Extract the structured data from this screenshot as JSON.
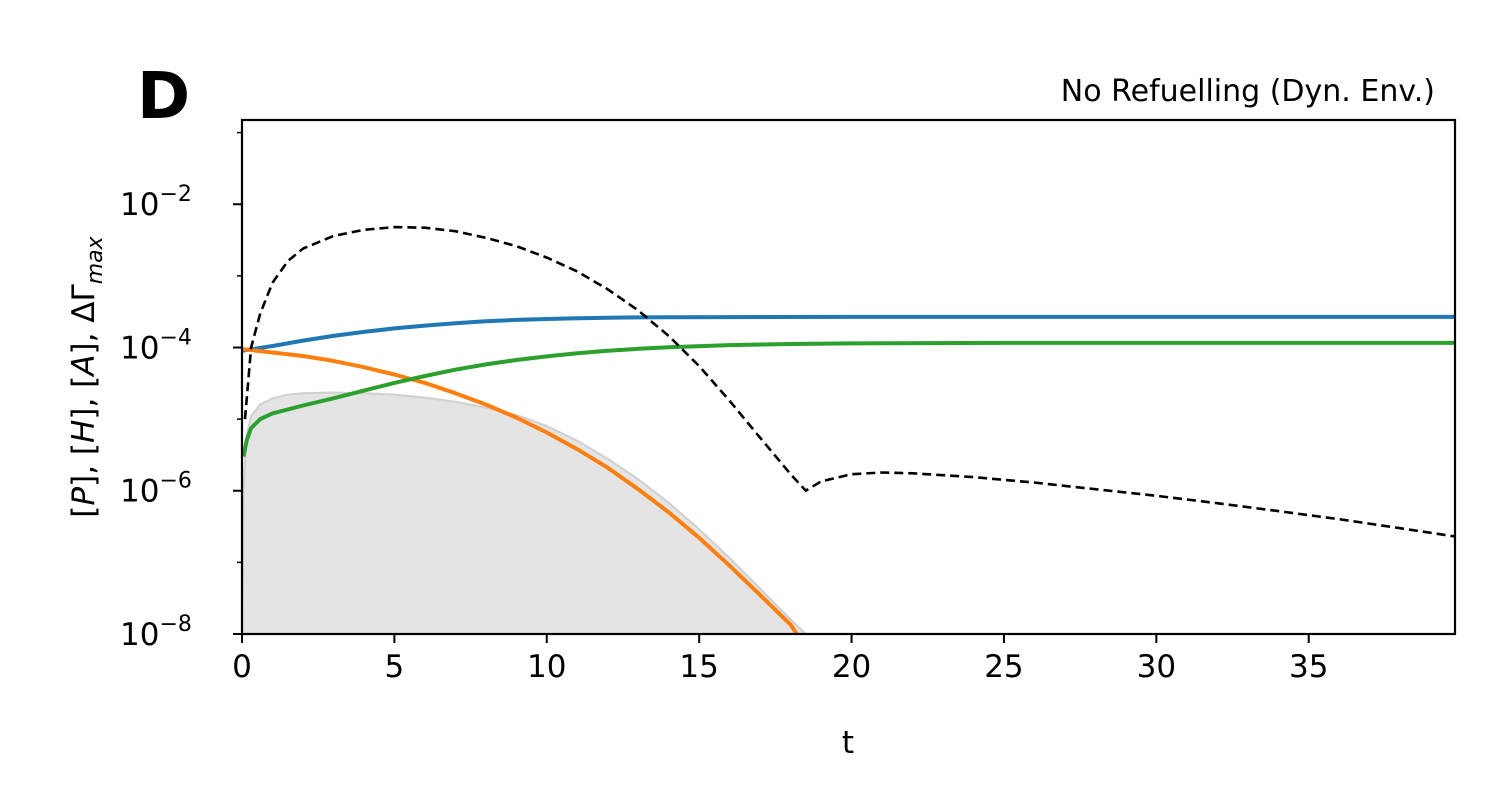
{
  "panel_label": "D",
  "chart_data": {
    "type": "line",
    "title": "No Refuelling (Dyn. Env.)",
    "xlabel": "t",
    "ylabel": {
      "parts": [
        "[",
        "P",
        "], [",
        "H",
        "], [",
        "A",
        "], ΔΓ",
        "max"
      ]
    },
    "xlim": [
      0,
      39.8
    ],
    "ylim": [
      1e-08,
      0.15
    ],
    "yscale": "log",
    "x_ticks": [
      0,
      5,
      10,
      15,
      20,
      25,
      30,
      35
    ],
    "y_ticks": [
      {
        "value": 1e-08,
        "base": "10",
        "exp": "−8"
      },
      {
        "value": 1e-06,
        "base": "10",
        "exp": "−6"
      },
      {
        "value": 0.0001,
        "base": "10",
        "exp": "−4"
      },
      {
        "value": 0.01,
        "base": "10",
        "exp": "−2"
      }
    ],
    "grid": false,
    "series": [
      {
        "style": "solid",
        "color": "#1f77b4",
        "points": [
          [
            0,
            9e-05
          ],
          [
            1,
            0.000105
          ],
          [
            2,
            0.000125
          ],
          [
            3,
            0.000145
          ],
          [
            4,
            0.000165
          ],
          [
            5,
            0.000185
          ],
          [
            6,
            0.000202
          ],
          [
            7,
            0.000218
          ],
          [
            8,
            0.000232
          ],
          [
            9,
            0.000243
          ],
          [
            10,
            0.00025
          ],
          [
            11,
            0.000256
          ],
          [
            12,
            0.00026
          ],
          [
            13,
            0.000263
          ],
          [
            14,
            0.000265
          ],
          [
            16,
            0.000266
          ],
          [
            20,
            0.000267
          ],
          [
            30,
            0.000267
          ],
          [
            39.8,
            0.000267
          ]
        ]
      },
      {
        "style": "solid",
        "color": "#ff7f0e",
        "points": [
          [
            0,
            9.5e-05
          ],
          [
            1,
            8.5e-05
          ],
          [
            2,
            7.6e-05
          ],
          [
            3,
            6.5e-05
          ],
          [
            4,
            5.3e-05
          ],
          [
            5,
            4.2e-05
          ],
          [
            6,
            3.2e-05
          ],
          [
            7,
            2.3e-05
          ],
          [
            8,
            1.6e-05
          ],
          [
            9,
            1.05e-05
          ],
          [
            10,
            6.5e-06
          ],
          [
            11,
            3.8e-06
          ],
          [
            12,
            2.1e-06
          ],
          [
            13,
            1.05e-06
          ],
          [
            14,
            5e-07
          ],
          [
            15,
            2.2e-07
          ],
          [
            16,
            9e-08
          ],
          [
            17,
            3.5e-08
          ],
          [
            18,
            1.35e-08
          ],
          [
            18.2,
            1e-08
          ]
        ]
      },
      {
        "style": "solid",
        "color": "#2ca02c",
        "points": [
          [
            0.05,
            3e-06
          ],
          [
            0.15,
            5e-06
          ],
          [
            0.3,
            7.5e-06
          ],
          [
            0.6,
            1e-05
          ],
          [
            1,
            1.2e-05
          ],
          [
            2,
            1.55e-05
          ],
          [
            3,
            1.95e-05
          ],
          [
            4,
            2.5e-05
          ],
          [
            5,
            3.2e-05
          ],
          [
            6,
            4e-05
          ],
          [
            7,
            4.9e-05
          ],
          [
            8,
            5.8e-05
          ],
          [
            9,
            6.7e-05
          ],
          [
            10,
            7.5e-05
          ],
          [
            11,
            8.3e-05
          ],
          [
            12,
            9e-05
          ],
          [
            13,
            9.6e-05
          ],
          [
            14,
            0.000101
          ],
          [
            16,
            0.000108
          ],
          [
            18,
            0.000112
          ],
          [
            20,
            0.000114
          ],
          [
            25,
            0.000116
          ],
          [
            30,
            0.000116
          ],
          [
            39.8,
            0.000116
          ]
        ]
      },
      {
        "style": "dashed",
        "color": "#000000",
        "points": [
          [
            0.1,
            1e-05
          ],
          [
            0.3,
            0.0001
          ],
          [
            0.6,
            0.0003
          ],
          [
            1,
            0.0008
          ],
          [
            1.5,
            0.0016
          ],
          [
            2,
            0.0024
          ],
          [
            3,
            0.0036
          ],
          [
            4,
            0.0044
          ],
          [
            5,
            0.0048
          ],
          [
            6,
            0.0047
          ],
          [
            7,
            0.0042
          ],
          [
            8,
            0.0034
          ],
          [
            9,
            0.0026
          ],
          [
            10,
            0.0018
          ],
          [
            11,
            0.00115
          ],
          [
            12,
            0.00065
          ],
          [
            13,
            0.00033
          ],
          [
            14,
            0.000145
          ],
          [
            15,
            5.5e-05
          ],
          [
            16,
            1.8e-05
          ],
          [
            17,
            5.5e-06
          ],
          [
            18,
            1.7e-06
          ],
          [
            18.5,
            1e-06
          ],
          [
            19,
            1.35e-06
          ],
          [
            20,
            1.7e-06
          ],
          [
            21,
            1.8e-06
          ],
          [
            22,
            1.75e-06
          ],
          [
            24,
            1.55e-06
          ],
          [
            26,
            1.3e-06
          ],
          [
            28,
            1.05e-06
          ],
          [
            30,
            8.5e-07
          ],
          [
            32,
            6.7e-07
          ],
          [
            34,
            5.2e-07
          ],
          [
            36,
            4e-07
          ],
          [
            38,
            3e-07
          ],
          [
            39.8,
            2.3e-07
          ]
        ]
      }
    ],
    "band": {
      "color": "#e4e4e4",
      "points": [
        [
          0,
          1e-08
        ],
        [
          0.05,
          1e-06
        ],
        [
          0.15,
          6e-06
        ],
        [
          0.3,
          1.1e-05
        ],
        [
          0.6,
          1.6e-05
        ],
        [
          1,
          1.95e-05
        ],
        [
          1.5,
          2.2e-05
        ],
        [
          2,
          2.3e-05
        ],
        [
          3,
          2.35e-05
        ],
        [
          4,
          2.3e-05
        ],
        [
          5,
          2.2e-05
        ],
        [
          6,
          2e-05
        ],
        [
          7,
          1.75e-05
        ],
        [
          8,
          1.45e-05
        ],
        [
          9,
          1.15e-05
        ],
        [
          10,
          8e-06
        ],
        [
          11,
          5e-06
        ],
        [
          12,
          2.8e-06
        ],
        [
          13,
          1.45e-06
        ],
        [
          14,
          6.8e-07
        ],
        [
          15,
          2.9e-07
        ],
        [
          16,
          1.15e-07
        ],
        [
          17,
          4.3e-08
        ],
        [
          18,
          1.6e-08
        ],
        [
          18.5,
          1e-08
        ]
      ]
    }
  }
}
